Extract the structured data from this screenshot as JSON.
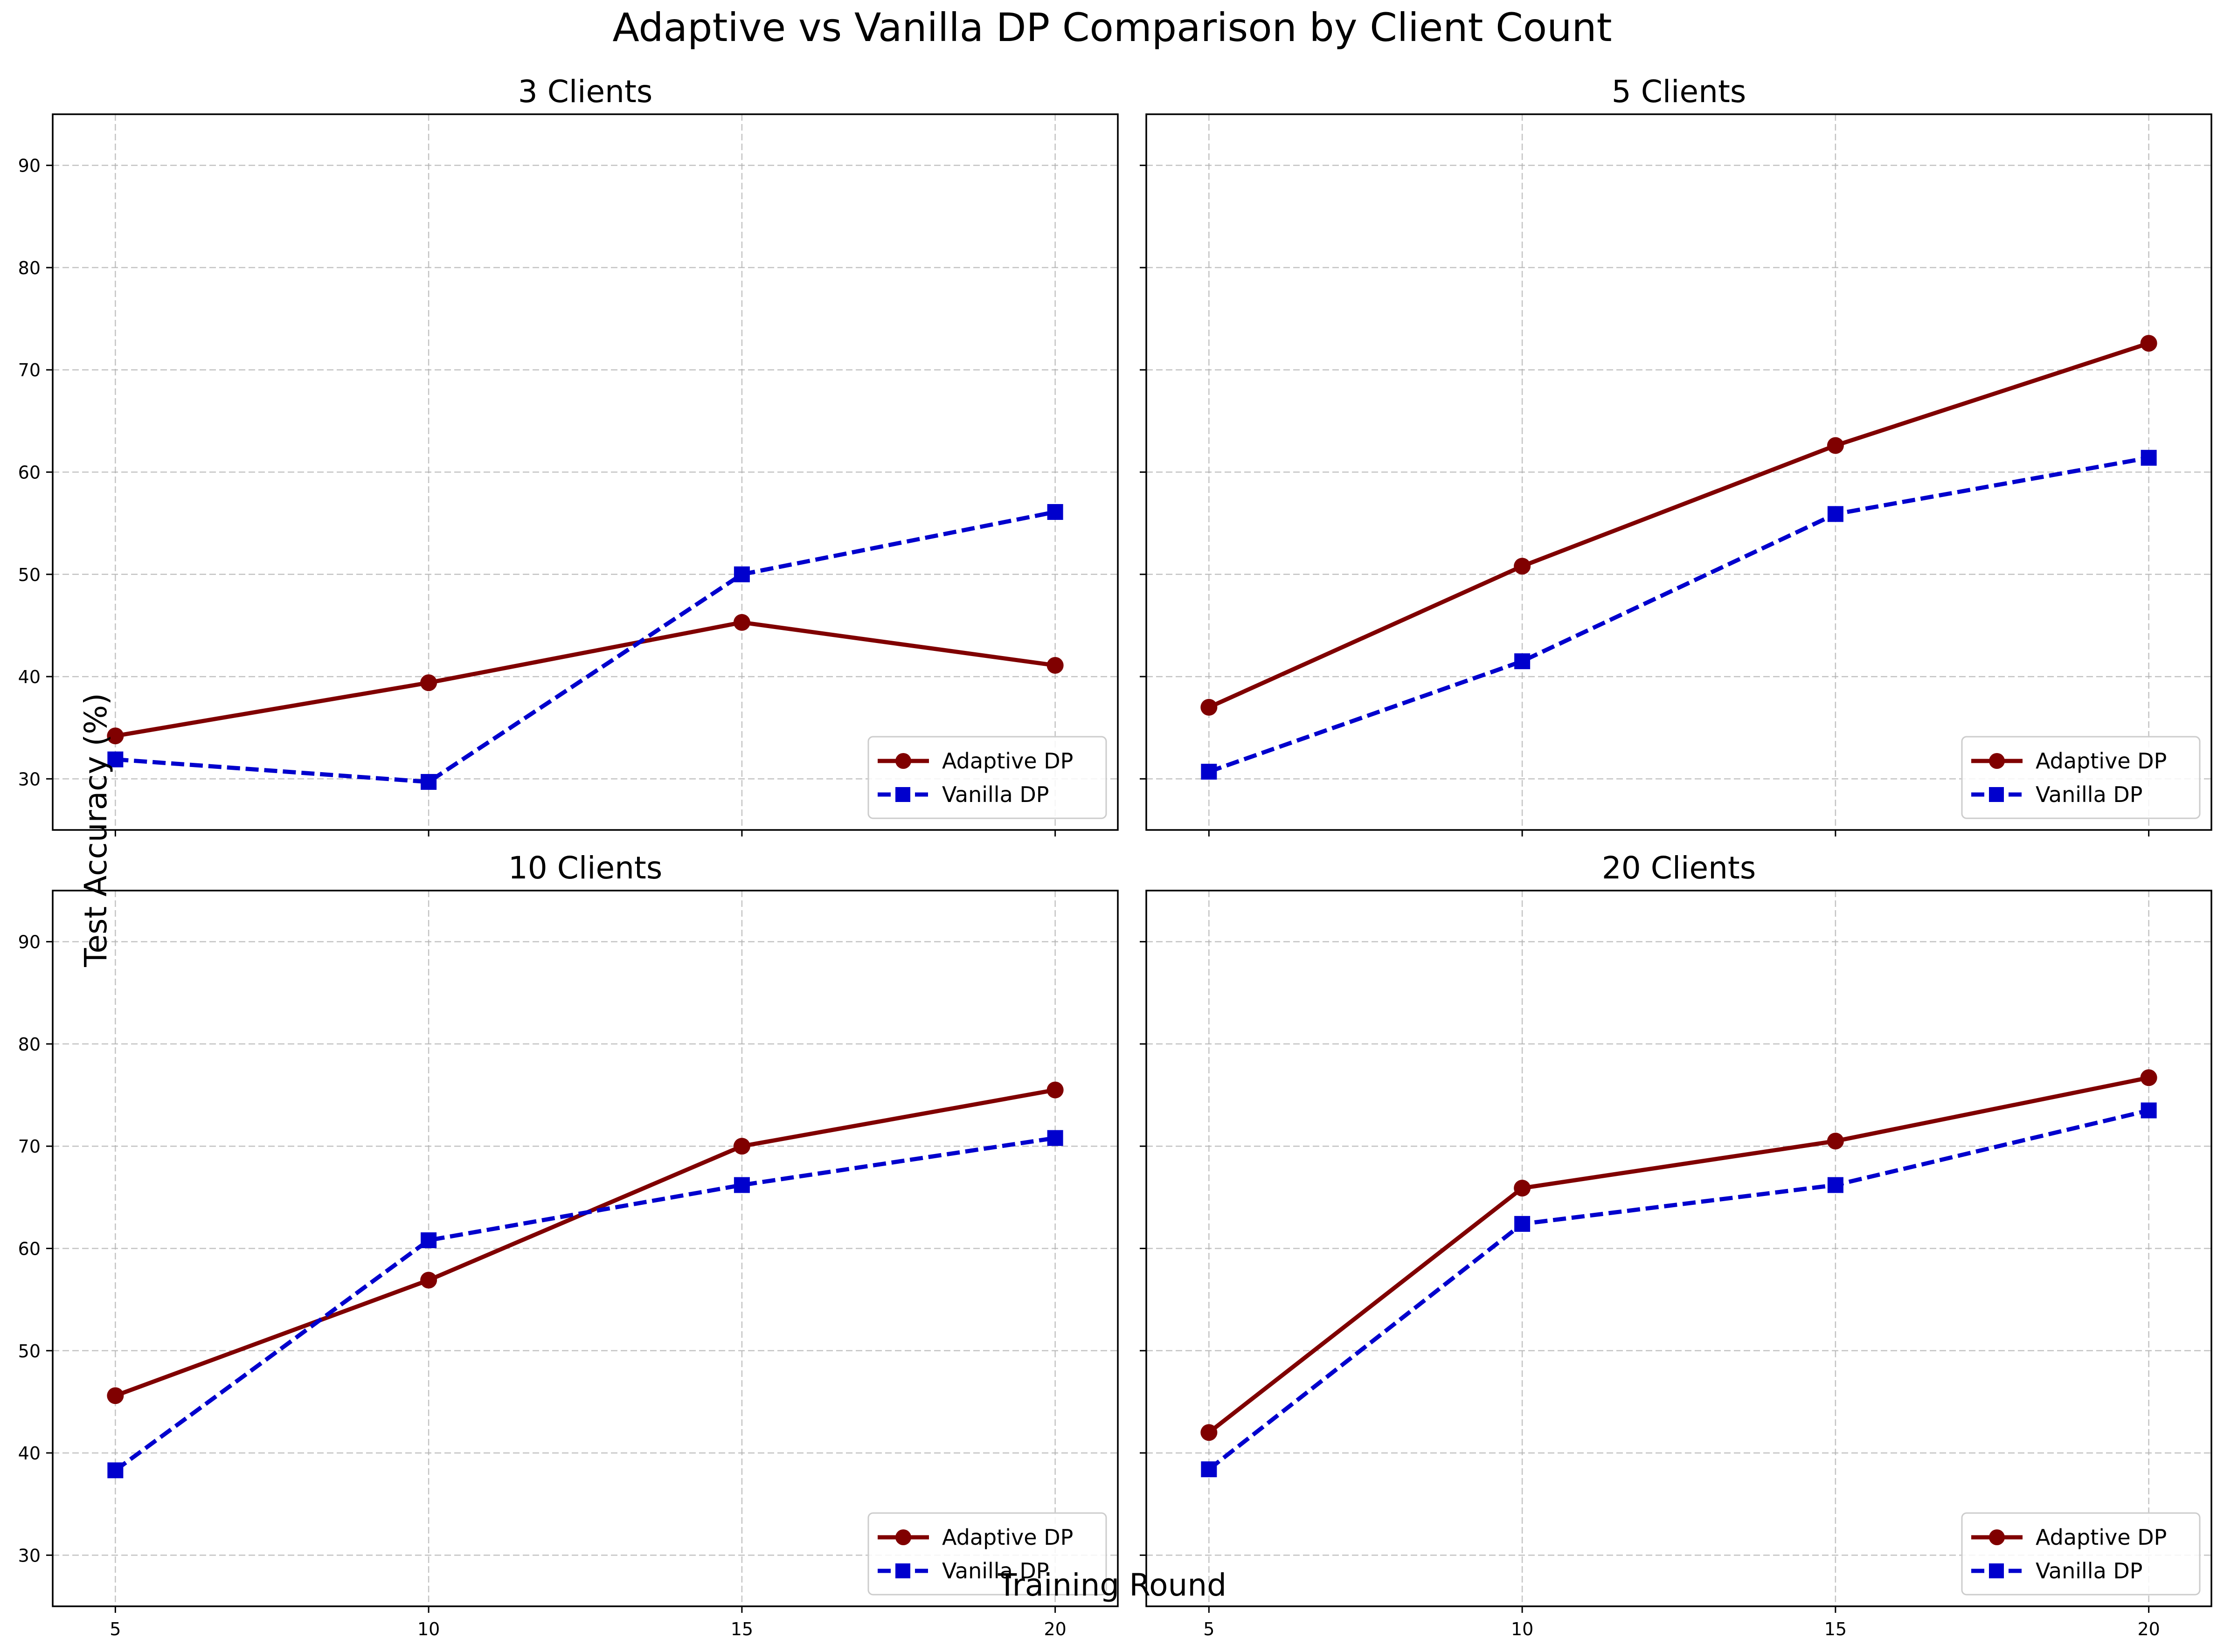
{
  "figure": {
    "title": "Adaptive vs Vanilla DP Comparison by Client Count",
    "xlabel": "Training Round",
    "ylabel": "Test Accuracy (%)"
  },
  "colors": {
    "adaptive": "#800000",
    "vanilla": "#0000CD",
    "grid": "#b0b0b0",
    "axes": "#000000"
  },
  "chart_data": [
    {
      "type": "line",
      "title": "3 Clients",
      "x": [
        5,
        10,
        15,
        20
      ],
      "series": [
        {
          "name": "Adaptive DP",
          "values": [
            34.2,
            39.4,
            45.3,
            41.1
          ],
          "style": "solid",
          "marker": "circle"
        },
        {
          "name": "Vanilla DP",
          "values": [
            31.9,
            29.7,
            50.0,
            56.1
          ],
          "style": "dashed",
          "marker": "square"
        }
      ],
      "xlim": [
        4,
        21
      ],
      "ylim": [
        25,
        95
      ],
      "xticks": [
        5,
        10,
        15,
        20
      ],
      "yticks": [
        30,
        40,
        50,
        60,
        70,
        80,
        90
      ],
      "show_xticklabels": false,
      "show_yticklabels": true,
      "grid": true,
      "legend": "lower-right"
    },
    {
      "type": "line",
      "title": "5 Clients",
      "x": [
        5,
        10,
        15,
        20
      ],
      "series": [
        {
          "name": "Adaptive DP",
          "values": [
            37.0,
            50.8,
            62.6,
            72.6
          ],
          "style": "solid",
          "marker": "circle"
        },
        {
          "name": "Vanilla DP",
          "values": [
            30.7,
            41.5,
            55.9,
            61.4
          ],
          "style": "dashed",
          "marker": "square"
        }
      ],
      "xlim": [
        4,
        21
      ],
      "ylim": [
        25,
        95
      ],
      "xticks": [
        5,
        10,
        15,
        20
      ],
      "yticks": [
        30,
        40,
        50,
        60,
        70,
        80,
        90
      ],
      "show_xticklabels": false,
      "show_yticklabels": false,
      "grid": true,
      "legend": "lower-right"
    },
    {
      "type": "line",
      "title": "10 Clients",
      "x": [
        5,
        10,
        15,
        20
      ],
      "series": [
        {
          "name": "Adaptive DP",
          "values": [
            45.6,
            56.9,
            70.0,
            75.5
          ],
          "style": "solid",
          "marker": "circle"
        },
        {
          "name": "Vanilla DP",
          "values": [
            38.3,
            60.8,
            66.2,
            70.8
          ],
          "style": "dashed",
          "marker": "square"
        }
      ],
      "xlim": [
        4,
        21
      ],
      "ylim": [
        25,
        95
      ],
      "xticks": [
        5,
        10,
        15,
        20
      ],
      "yticks": [
        30,
        40,
        50,
        60,
        70,
        80,
        90
      ],
      "show_xticklabels": true,
      "show_yticklabels": true,
      "grid": true,
      "legend": "lower-right"
    },
    {
      "type": "line",
      "title": "20 Clients",
      "x": [
        5,
        10,
        15,
        20
      ],
      "series": [
        {
          "name": "Adaptive DP",
          "values": [
            42.0,
            65.9,
            70.5,
            76.7
          ],
          "style": "solid",
          "marker": "circle"
        },
        {
          "name": "Vanilla DP",
          "values": [
            38.4,
            62.4,
            66.2,
            73.5
          ],
          "style": "dashed",
          "marker": "square"
        }
      ],
      "xlim": [
        4,
        21
      ],
      "ylim": [
        25,
        95
      ],
      "xticks": [
        5,
        10,
        15,
        20
      ],
      "yticks": [
        30,
        40,
        50,
        60,
        70,
        80,
        90
      ],
      "show_xticklabels": true,
      "show_yticklabels": false,
      "grid": true,
      "legend": "lower-right"
    }
  ]
}
